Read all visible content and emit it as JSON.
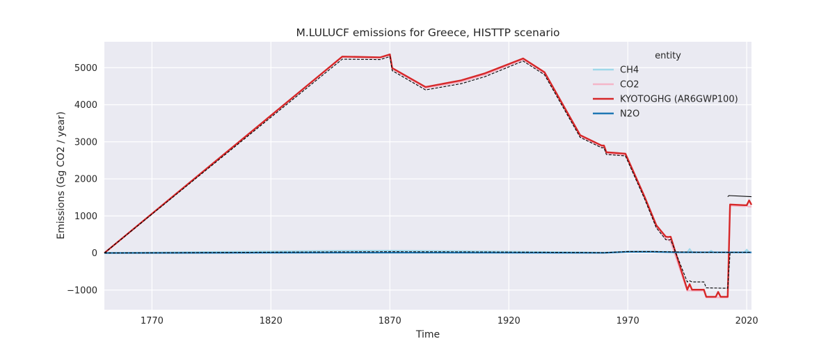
{
  "chart_data": {
    "type": "line",
    "title": "M.LULUCF emissions for Greece, HISTTP scenario",
    "xlabel": "Time",
    "ylabel": "Emissions (Gg CO2 / year)",
    "xlim": [
      1750,
      2022
    ],
    "ylim": [
      -1530,
      5700
    ],
    "xticks": [
      1770,
      1820,
      1870,
      1920,
      1970,
      2020
    ],
    "yticks": [
      -1000,
      0,
      1000,
      2000,
      3000,
      4000,
      5000
    ],
    "grid": true,
    "legend": {
      "title": "entity",
      "placement": "top-right"
    },
    "series": [
      {
        "name": "CH4",
        "color": "#9fd8ea",
        "x": [
          1750,
          1800,
          1850,
          1870,
          1900,
          1950,
          1960,
          1970,
          1980,
          1988,
          1989,
          1995,
          1996,
          1997,
          2004,
          2005,
          2006,
          2012,
          2013,
          2019,
          2020,
          2021,
          2022
        ],
        "y": [
          0,
          30,
          60,
          65,
          50,
          20,
          10,
          40,
          40,
          30,
          20,
          20,
          110,
          20,
          20,
          60,
          20,
          20,
          20,
          20,
          90,
          20,
          20
        ]
      },
      {
        "name": "CO2",
        "color": "#f4b6c8",
        "x": [
          1750,
          1850,
          1866,
          1870,
          1871,
          1885,
          1900,
          1910,
          1926,
          1935,
          1950,
          1959,
          1960,
          1961,
          1969,
          1977,
          1982,
          1986,
          1987,
          1988,
          1995,
          1996,
          1997,
          2002,
          2003,
          2009,
          2010,
          2011,
          2012,
          2013,
          2019,
          2020,
          2021,
          2022
        ],
        "y": [
          0,
          5290,
          5270,
          5340,
          4970,
          4450,
          4620,
          4810,
          5220,
          4850,
          3150,
          2870,
          2870,
          2690,
          2650,
          1500,
          700,
          380,
          370,
          300,
          -1020,
          -1010,
          -1020,
          -1020,
          -1200,
          -1200,
          -1200,
          -1200,
          -1200,
          1280,
          1260,
          1270,
          1250,
          1250
        ]
      },
      {
        "name": "KYOTOGHG (AR6GWP100)",
        "color": "#d62728",
        "x": [
          1750,
          1850,
          1866,
          1870,
          1871,
          1885,
          1900,
          1910,
          1926,
          1935,
          1950,
          1959,
          1960,
          1961,
          1969,
          1977,
          1982,
          1986,
          1987,
          1988,
          1995,
          1996,
          1997,
          2002,
          2003,
          2007,
          2008,
          2009,
          2010,
          2011,
          2012,
          2013,
          2019,
          2020,
          2021,
          2022
        ],
        "y": [
          0,
          5300,
          5280,
          5360,
          4990,
          4480,
          4660,
          4850,
          5250,
          4880,
          3180,
          2900,
          2900,
          2720,
          2680,
          1530,
          750,
          440,
          430,
          440,
          -990,
          -840,
          -990,
          -990,
          -1180,
          -1180,
          -1050,
          -1180,
          -1180,
          -1180,
          -1180,
          1310,
          1290,
          1290,
          1420,
          1300
        ]
      },
      {
        "name": "N2O",
        "color": "#1f77b4",
        "x": [
          1750,
          1850,
          1870,
          1960,
          1970,
          1980,
          1990,
          2022
        ],
        "y": [
          0,
          10,
          10,
          5,
          30,
          30,
          20,
          15
        ]
      }
    ],
    "reference_lines": [
      {
        "style": "dashed",
        "color": "#000000",
        "x": [
          1750,
          1850,
          1866,
          1870,
          1871,
          1885,
          1900,
          1910,
          1926,
          1935,
          1950,
          1959,
          1960,
          1961,
          1969,
          1977,
          1982,
          1986,
          1987,
          1988,
          1995,
          1996,
          1997,
          2002,
          2003,
          2011,
          2012,
          2013
        ],
        "y": [
          0,
          5230,
          5220,
          5300,
          4920,
          4400,
          4570,
          4760,
          5180,
          4810,
          3120,
          2840,
          2840,
          2660,
          2620,
          1470,
          680,
          360,
          350,
          360,
          -780,
          -750,
          -780,
          -780,
          -940,
          -950,
          -950,
          0
        ]
      },
      {
        "style": "dashed",
        "color": "#000000",
        "x": [
          1750,
          1800,
          1850,
          1870,
          1900,
          1950,
          1960,
          1970,
          1980,
          1990,
          2000,
          2010,
          2022
        ],
        "y": [
          0,
          15,
          30,
          35,
          30,
          15,
          10,
          40,
          40,
          30,
          20,
          20,
          20
        ]
      },
      {
        "style": "solid",
        "color": "#000000",
        "x": [
          2012,
          2012.5,
          2022
        ],
        "y": [
          1520,
          1550,
          1520
        ]
      }
    ]
  }
}
